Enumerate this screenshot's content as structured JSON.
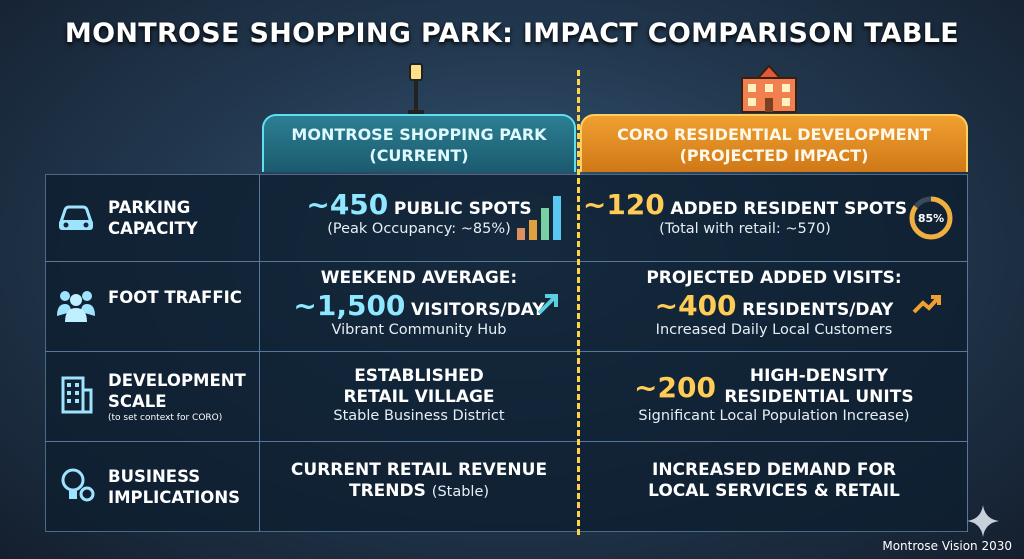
{
  "title": "MONTROSE SHOPPING PARK: IMPACT COMPARISON TABLE",
  "columns": [
    {
      "title": "MONTROSE SHOPPING PARK",
      "subtitle": "(CURRENT)"
    },
    {
      "title": "CORO RESIDENTIAL DEVELOPMENT",
      "subtitle": "(PROJECTED IMPACT)"
    }
  ],
  "rows": [
    {
      "label": "PARKING CAPACITY",
      "cells": [
        {
          "figure": "~450",
          "text": "PUBLIC SPOTS",
          "note": "(Peak Occupancy: ~85%)"
        },
        {
          "figure": "~120",
          "text": "ADDED RESIDENT SPOTS",
          "note": "(Total with retail: ~570)",
          "ring": {
            "value": 85,
            "label": "85%"
          }
        }
      ]
    },
    {
      "label": "FOOT TRAFFIC",
      "cells": [
        {
          "heading": "WEEKEND AVERAGE:",
          "figure": "~1,500",
          "text": "VISITORS/DAY",
          "note": "Vibrant Community Hub"
        },
        {
          "heading": "PROJECTED ADDED VISITS:",
          "figure": "~400",
          "text": "RESIDENTS/DAY",
          "note": "Increased Daily Local Customers"
        }
      ]
    },
    {
      "label": "DEVELOPMENT SCALE",
      "sublabel": "(to set context for CORO)",
      "cells": [
        {
          "heading": "ESTABLISHED RETAIL VILLAGE",
          "note": "Stable Business District"
        },
        {
          "figure": "~200",
          "text": "HIGH-DENSITY RESIDENTIAL UNITS",
          "note": "Significant Local Population Increase)"
        }
      ]
    },
    {
      "label": "BUSINESS IMPLICATIONS",
      "cells": [
        {
          "heading": "CURRENT RETAIL REVENUE TRENDS",
          "note": "(Stable)"
        },
        {
          "heading": "INCREASED DEMAND FOR LOCAL SERVICES & RETAIL"
        }
      ]
    }
  ],
  "footer": "Montrose Vision 2030"
}
